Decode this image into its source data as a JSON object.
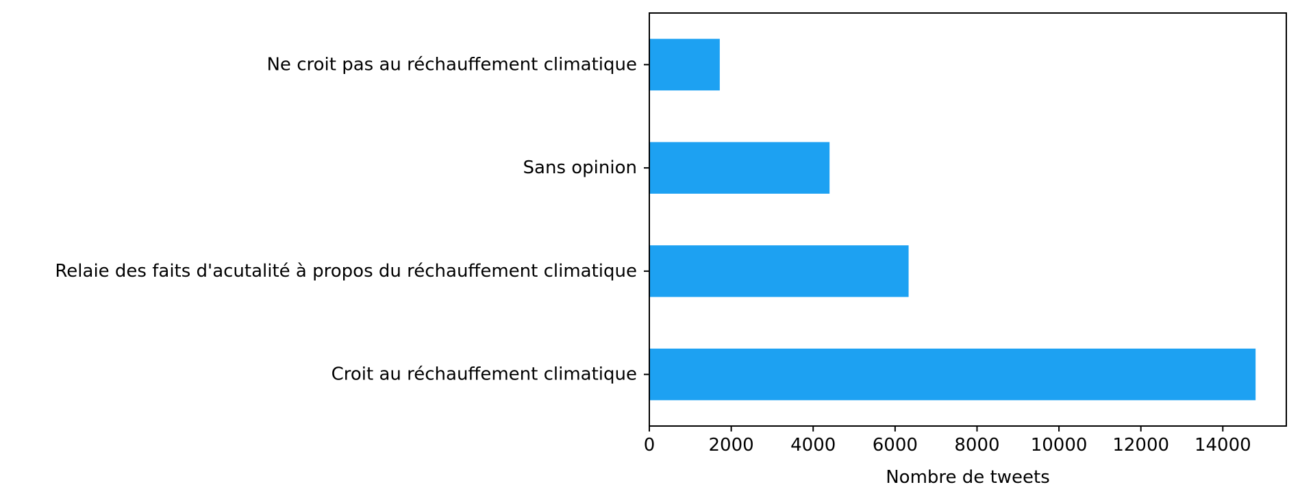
{
  "chart_data": {
    "type": "bar",
    "orientation": "horizontal",
    "categories": [
      "Croit au réchauffement climatique",
      "Relaie des faits d'acutalité à propos du réchauffement climatique",
      "Sans opinion",
      "Ne croit pas au réchauffement climatique"
    ],
    "values": [
      14800,
      6330,
      4400,
      1720
    ],
    "xlabel": "Nombre de tweets",
    "ylabel": "",
    "xlim": [
      0,
      15550
    ],
    "xticks": [
      0,
      2000,
      4000,
      6000,
      8000,
      10000,
      12000,
      14000
    ],
    "xtick_labels": [
      "0",
      "2000",
      "4000",
      "6000",
      "8000",
      "10000",
      "12000",
      "14000"
    ],
    "grid": false,
    "bar_color": "#1DA1F2"
  }
}
